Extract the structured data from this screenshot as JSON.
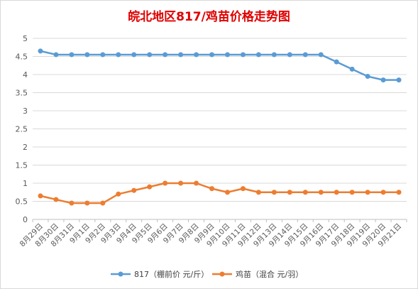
{
  "chart_data": {
    "type": "line",
    "title": "皖北地区817/鸡苗价格走势图",
    "categories": [
      "8月29日",
      "8月30日",
      "8月31日",
      "9月1日",
      "9月2日",
      "9月3日",
      "9月4日",
      "9月5日",
      "9月6日",
      "9月7日",
      "9月8日",
      "9月9日",
      "9月10日",
      "9月11日",
      "9月12日",
      "9月13日",
      "9月14日",
      "9月15日",
      "9月16日",
      "9月17日",
      "9月18日",
      "9月19日",
      "9月20日",
      "9月21日"
    ],
    "ylim": [
      0,
      5
    ],
    "yticks": [
      "0",
      "0.5",
      "1",
      "1.5",
      "2",
      "2.5",
      "3",
      "3.5",
      "4",
      "4.5",
      "5"
    ],
    "grid": true,
    "legend_position": "bottom",
    "series": [
      {
        "name": "817（棚前价 元/斤）",
        "color": "#5b9bd5",
        "values": [
          4.65,
          4.55,
          4.55,
          4.55,
          4.55,
          4.55,
          4.55,
          4.55,
          4.55,
          4.55,
          4.55,
          4.55,
          4.55,
          4.55,
          4.55,
          4.55,
          4.55,
          4.55,
          4.55,
          4.35,
          4.15,
          3.95,
          3.85,
          3.85
        ]
      },
      {
        "name": "鸡苗（混合 元/羽）",
        "color": "#ed7d31",
        "values": [
          0.65,
          0.55,
          0.45,
          0.45,
          0.45,
          0.7,
          0.8,
          0.9,
          1.0,
          1.0,
          1.0,
          0.85,
          0.75,
          0.85,
          0.75,
          0.75,
          0.75,
          0.75,
          0.75,
          0.75,
          0.75,
          0.75,
          0.75,
          0.75
        ]
      }
    ]
  }
}
